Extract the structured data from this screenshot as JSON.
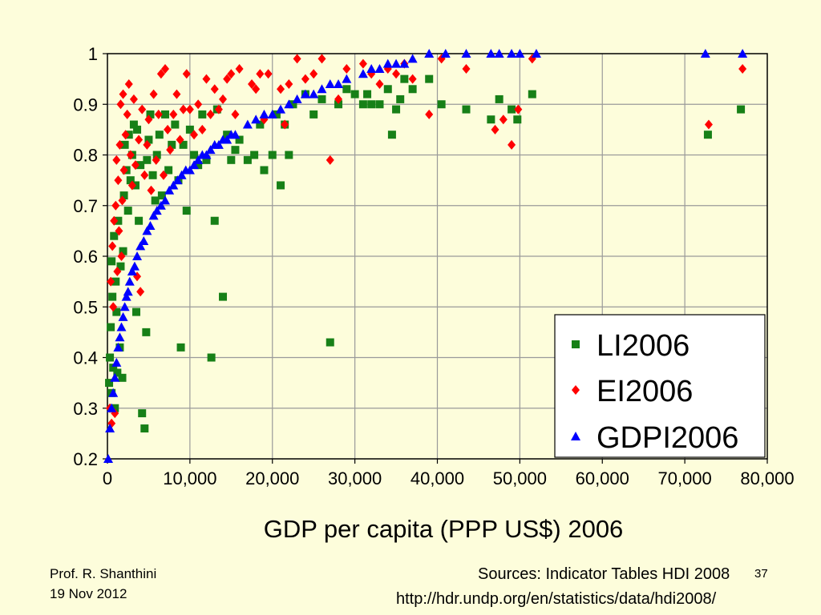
{
  "footer": {
    "author": "Prof. R. Shanthini",
    "date": "19 Nov 2012",
    "sources": "Sources: Indicator Tables HDI 2008",
    "page_number": "37",
    "url": "http://hdr.undp.org/en/statistics/data/hdi2008/"
  },
  "colors": {
    "background": "#fdfddb",
    "grid": "#9a9a9a",
    "LI2006": "#178017",
    "EI2006": "#ff0000",
    "GDPI2006": "#0000ff"
  },
  "chart_data": {
    "type": "scatter",
    "title": "",
    "xlabel": "GDP per capita (PPP US$) 2006",
    "ylabel": "",
    "xlim": [
      0,
      80000
    ],
    "ylim": [
      0.2,
      1.0
    ],
    "x_ticks": [
      "0",
      "10,000",
      "20,000",
      "30,000",
      "40,000",
      "50,000",
      "60,000",
      "70,000",
      "80,000"
    ],
    "y_ticks": [
      "0.2",
      "0.3",
      "0.4",
      "0.5",
      "0.6",
      "0.7",
      "0.8",
      "0.9",
      "1"
    ],
    "grid": true,
    "legend_position": "bottom-right",
    "series": [
      {
        "name": "LI2006",
        "marker": "square",
        "points": [
          [
            200,
            0.35
          ],
          [
            300,
            0.4
          ],
          [
            400,
            0.46
          ],
          [
            500,
            0.33
          ],
          [
            500,
            0.59
          ],
          [
            600,
            0.52
          ],
          [
            700,
            0.38
          ],
          [
            800,
            0.64
          ],
          [
            900,
            0.3
          ],
          [
            1000,
            0.55
          ],
          [
            1100,
            0.49
          ],
          [
            1200,
            0.37
          ],
          [
            1300,
            0.67
          ],
          [
            1500,
            0.42
          ],
          [
            1600,
            0.58
          ],
          [
            1800,
            0.36
          ],
          [
            1900,
            0.61
          ],
          [
            2000,
            0.72
          ],
          [
            2100,
            0.82
          ],
          [
            2300,
            0.77
          ],
          [
            2500,
            0.69
          ],
          [
            2600,
            0.84
          ],
          [
            2800,
            0.75
          ],
          [
            3000,
            0.8
          ],
          [
            3200,
            0.86
          ],
          [
            3400,
            0.74
          ],
          [
            3500,
            0.49
          ],
          [
            3600,
            0.85
          ],
          [
            3800,
            0.67
          ],
          [
            4000,
            0.78
          ],
          [
            4200,
            0.29
          ],
          [
            4500,
            0.26
          ],
          [
            4700,
            0.45
          ],
          [
            4800,
            0.79
          ],
          [
            5000,
            0.83
          ],
          [
            5200,
            0.88
          ],
          [
            5500,
            0.76
          ],
          [
            5800,
            0.71
          ],
          [
            6000,
            0.8
          ],
          [
            6300,
            0.84
          ],
          [
            6600,
            0.72
          ],
          [
            7000,
            0.88
          ],
          [
            7400,
            0.77
          ],
          [
            7800,
            0.82
          ],
          [
            8200,
            0.86
          ],
          [
            8600,
            0.75
          ],
          [
            8900,
            0.42
          ],
          [
            9200,
            0.82
          ],
          [
            9600,
            0.69
          ],
          [
            10000,
            0.85
          ],
          [
            10500,
            0.8
          ],
          [
            11000,
            0.78
          ],
          [
            11500,
            0.88
          ],
          [
            12000,
            0.79
          ],
          [
            12600,
            0.4
          ],
          [
            13000,
            0.67
          ],
          [
            13300,
            0.89
          ],
          [
            14000,
            0.52
          ],
          [
            14500,
            0.84
          ],
          [
            15000,
            0.79
          ],
          [
            15500,
            0.81
          ],
          [
            16000,
            0.83
          ],
          [
            17000,
            0.79
          ],
          [
            17800,
            0.8
          ],
          [
            18500,
            0.86
          ],
          [
            19000,
            0.77
          ],
          [
            20000,
            0.8
          ],
          [
            20500,
            0.88
          ],
          [
            21000,
            0.74
          ],
          [
            21500,
            0.86
          ],
          [
            22000,
            0.8
          ],
          [
            22500,
            0.9
          ],
          [
            24000,
            0.92
          ],
          [
            25000,
            0.88
          ],
          [
            26000,
            0.91
          ],
          [
            27000,
            0.43
          ],
          [
            28000,
            0.9
          ],
          [
            29000,
            0.93
          ],
          [
            30000,
            0.92
          ],
          [
            31000,
            0.9
          ],
          [
            31500,
            0.92
          ],
          [
            32000,
            0.9
          ],
          [
            33000,
            0.9
          ],
          [
            34000,
            0.93
          ],
          [
            34500,
            0.84
          ],
          [
            35000,
            0.89
          ],
          [
            35500,
            0.91
          ],
          [
            36000,
            0.95
          ],
          [
            37000,
            0.93
          ],
          [
            39000,
            0.95
          ],
          [
            40500,
            0.9
          ],
          [
            43500,
            0.89
          ],
          [
            46500,
            0.87
          ],
          [
            47500,
            0.91
          ],
          [
            49000,
            0.89
          ],
          [
            49700,
            0.87
          ],
          [
            51500,
            0.92
          ],
          [
            72800,
            0.84
          ],
          [
            76800,
            0.89
          ]
        ]
      },
      {
        "name": "EI2006",
        "marker": "diamond",
        "points": [
          [
            300,
            0.3
          ],
          [
            400,
            0.55
          ],
          [
            500,
            0.27
          ],
          [
            600,
            0.62
          ],
          [
            700,
            0.5
          ],
          [
            800,
            0.67
          ],
          [
            900,
            0.29
          ],
          [
            1000,
            0.7
          ],
          [
            1100,
            0.79
          ],
          [
            1200,
            0.57
          ],
          [
            1300,
            0.75
          ],
          [
            1400,
            0.65
          ],
          [
            1500,
            0.82
          ],
          [
            1600,
            0.9
          ],
          [
            1700,
            0.6
          ],
          [
            1800,
            0.71
          ],
          [
            1900,
            0.92
          ],
          [
            2000,
            0.77
          ],
          [
            2200,
            0.84
          ],
          [
            2400,
            0.88
          ],
          [
            2600,
            0.94
          ],
          [
            2800,
            0.8
          ],
          [
            3000,
            0.74
          ],
          [
            3200,
            0.91
          ],
          [
            3400,
            0.78
          ],
          [
            3600,
            0.56
          ],
          [
            3800,
            0.83
          ],
          [
            4000,
            0.53
          ],
          [
            4200,
            0.89
          ],
          [
            4500,
            0.76
          ],
          [
            4800,
            0.82
          ],
          [
            5000,
            0.87
          ],
          [
            5300,
            0.73
          ],
          [
            5600,
            0.92
          ],
          [
            5900,
            0.79
          ],
          [
            6200,
            0.88
          ],
          [
            6500,
            0.96
          ],
          [
            6800,
            0.76
          ],
          [
            7000,
            0.97
          ],
          [
            7300,
            0.85
          ],
          [
            7600,
            0.81
          ],
          [
            8000,
            0.88
          ],
          [
            8400,
            0.92
          ],
          [
            8800,
            0.83
          ],
          [
            9200,
            0.89
          ],
          [
            9600,
            0.96
          ],
          [
            10000,
            0.89
          ],
          [
            10500,
            0.84
          ],
          [
            11000,
            0.9
          ],
          [
            11500,
            0.85
          ],
          [
            12000,
            0.95
          ],
          [
            12500,
            0.88
          ],
          [
            13000,
            0.93
          ],
          [
            13500,
            0.89
          ],
          [
            14000,
            0.91
          ],
          [
            14500,
            0.95
          ],
          [
            15000,
            0.96
          ],
          [
            15500,
            0.88
          ],
          [
            16000,
            0.97
          ],
          [
            17500,
            0.94
          ],
          [
            18000,
            0.93
          ],
          [
            18500,
            0.96
          ],
          [
            19000,
            0.87
          ],
          [
            19500,
            0.96
          ],
          [
            21000,
            0.93
          ],
          [
            21500,
            0.86
          ],
          [
            22000,
            0.94
          ],
          [
            23000,
            0.99
          ],
          [
            24000,
            0.95
          ],
          [
            25000,
            0.96
          ],
          [
            26000,
            0.99
          ],
          [
            27000,
            0.79
          ],
          [
            28000,
            0.91
          ],
          [
            29000,
            0.97
          ],
          [
            31000,
            0.98
          ],
          [
            32000,
            0.96
          ],
          [
            33000,
            0.94
          ],
          [
            34000,
            0.97
          ],
          [
            35000,
            0.96
          ],
          [
            36000,
            0.98
          ],
          [
            37000,
            0.95
          ],
          [
            39000,
            0.88
          ],
          [
            40500,
            0.99
          ],
          [
            43500,
            0.97
          ],
          [
            47000,
            0.85
          ],
          [
            48000,
            0.87
          ],
          [
            49000,
            0.82
          ],
          [
            49800,
            0.89
          ],
          [
            51500,
            0.99
          ],
          [
            72900,
            0.86
          ],
          [
            77000,
            0.97
          ]
        ]
      },
      {
        "name": "GDPI2006",
        "marker": "triangle",
        "points": [
          [
            100,
            0.2
          ],
          [
            300,
            0.26
          ],
          [
            500,
            0.3
          ],
          [
            700,
            0.33
          ],
          [
            900,
            0.36
          ],
          [
            1100,
            0.39
          ],
          [
            1300,
            0.42
          ],
          [
            1500,
            0.44
          ],
          [
            1700,
            0.46
          ],
          [
            1900,
            0.48
          ],
          [
            2100,
            0.5
          ],
          [
            2300,
            0.52
          ],
          [
            2500,
            0.53
          ],
          [
            2700,
            0.55
          ],
          [
            3000,
            0.57
          ],
          [
            3300,
            0.58
          ],
          [
            3600,
            0.6
          ],
          [
            4000,
            0.62
          ],
          [
            4400,
            0.63
          ],
          [
            4800,
            0.65
          ],
          [
            5200,
            0.66
          ],
          [
            5600,
            0.68
          ],
          [
            6000,
            0.69
          ],
          [
            6500,
            0.7
          ],
          [
            7000,
            0.71
          ],
          [
            7500,
            0.73
          ],
          [
            8000,
            0.74
          ],
          [
            8500,
            0.75
          ],
          [
            9000,
            0.76
          ],
          [
            9500,
            0.77
          ],
          [
            10000,
            0.77
          ],
          [
            10500,
            0.78
          ],
          [
            11000,
            0.79
          ],
          [
            11500,
            0.8
          ],
          [
            12000,
            0.8
          ],
          [
            12500,
            0.81
          ],
          [
            13000,
            0.82
          ],
          [
            13500,
            0.82
          ],
          [
            14000,
            0.83
          ],
          [
            14500,
            0.83
          ],
          [
            15000,
            0.84
          ],
          [
            15500,
            0.84
          ],
          [
            17000,
            0.86
          ],
          [
            18000,
            0.87
          ],
          [
            19000,
            0.88
          ],
          [
            20000,
            0.88
          ],
          [
            21000,
            0.89
          ],
          [
            22000,
            0.9
          ],
          [
            23000,
            0.91
          ],
          [
            24000,
            0.92
          ],
          [
            25000,
            0.92
          ],
          [
            26000,
            0.93
          ],
          [
            27000,
            0.94
          ],
          [
            28000,
            0.94
          ],
          [
            29000,
            0.95
          ],
          [
            31000,
            0.96
          ],
          [
            32000,
            0.97
          ],
          [
            33000,
            0.97
          ],
          [
            34000,
            0.98
          ],
          [
            35000,
            0.98
          ],
          [
            36000,
            0.98
          ],
          [
            37000,
            0.99
          ],
          [
            39000,
            1.0
          ],
          [
            41000,
            1.0
          ],
          [
            43500,
            1.0
          ],
          [
            46500,
            1.0
          ],
          [
            47500,
            1.0
          ],
          [
            49000,
            1.0
          ],
          [
            50000,
            1.0
          ],
          [
            52000,
            1.0
          ],
          [
            72500,
            1.0
          ],
          [
            77000,
            1.0
          ]
        ]
      }
    ]
  }
}
